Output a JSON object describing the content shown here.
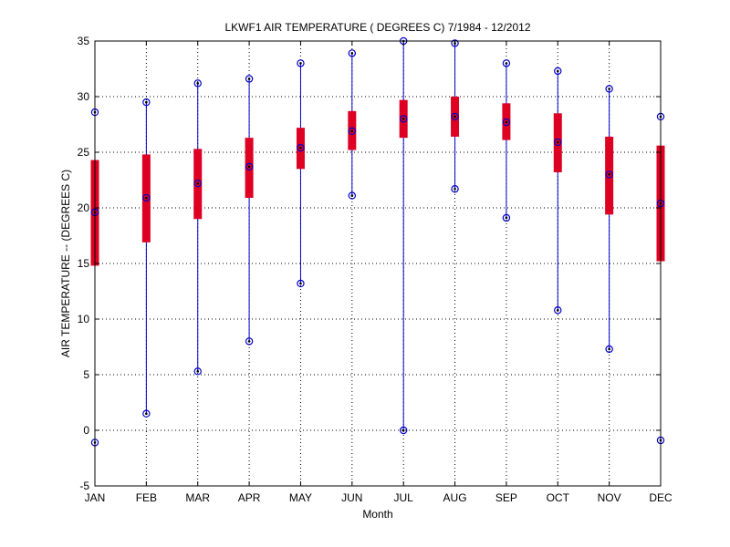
{
  "chart_data": {
    "type": "box",
    "title": "LKWF1  AIR TEMPERATURE ( DEGREES C) 7/1984 - 12/2012",
    "xlabel": "Month",
    "ylabel": "AIR TEMPERATURE -- (DEGREES C)",
    "ylim": [
      -5,
      35
    ],
    "yticks": [
      -5,
      0,
      5,
      10,
      15,
      20,
      25,
      30,
      35
    ],
    "grid": true,
    "categories": [
      "JAN",
      "FEB",
      "MAR",
      "APR",
      "MAY",
      "JUN",
      "JUL",
      "AUG",
      "SEP",
      "OCT",
      "NOV",
      "DEC"
    ],
    "series": [
      {
        "name": "min",
        "values": [
          -1.1,
          1.5,
          5.3,
          8.0,
          13.2,
          21.1,
          0.0,
          21.7,
          19.1,
          10.8,
          7.3,
          -0.9
        ]
      },
      {
        "name": "lower_box",
        "values": [
          14.8,
          16.9,
          19.0,
          20.9,
          23.5,
          25.2,
          26.3,
          26.4,
          26.1,
          23.2,
          19.4,
          15.2
        ]
      },
      {
        "name": "median",
        "values": [
          19.6,
          20.9,
          22.2,
          23.7,
          25.4,
          26.9,
          28.0,
          28.2,
          27.7,
          25.9,
          23.0,
          20.4
        ]
      },
      {
        "name": "upper_box",
        "values": [
          24.3,
          24.8,
          25.3,
          26.3,
          27.2,
          28.7,
          29.7,
          30.0,
          29.4,
          28.5,
          26.4,
          25.6
        ]
      },
      {
        "name": "max",
        "values": [
          28.6,
          29.5,
          31.2,
          31.6,
          33.0,
          33.9,
          35.0,
          34.8,
          33.0,
          32.3,
          30.7,
          28.2
        ]
      }
    ],
    "colors": {
      "whisker": "#0000cc",
      "box": "#dd0022",
      "marker": "#000000",
      "grid": "#000000"
    }
  }
}
